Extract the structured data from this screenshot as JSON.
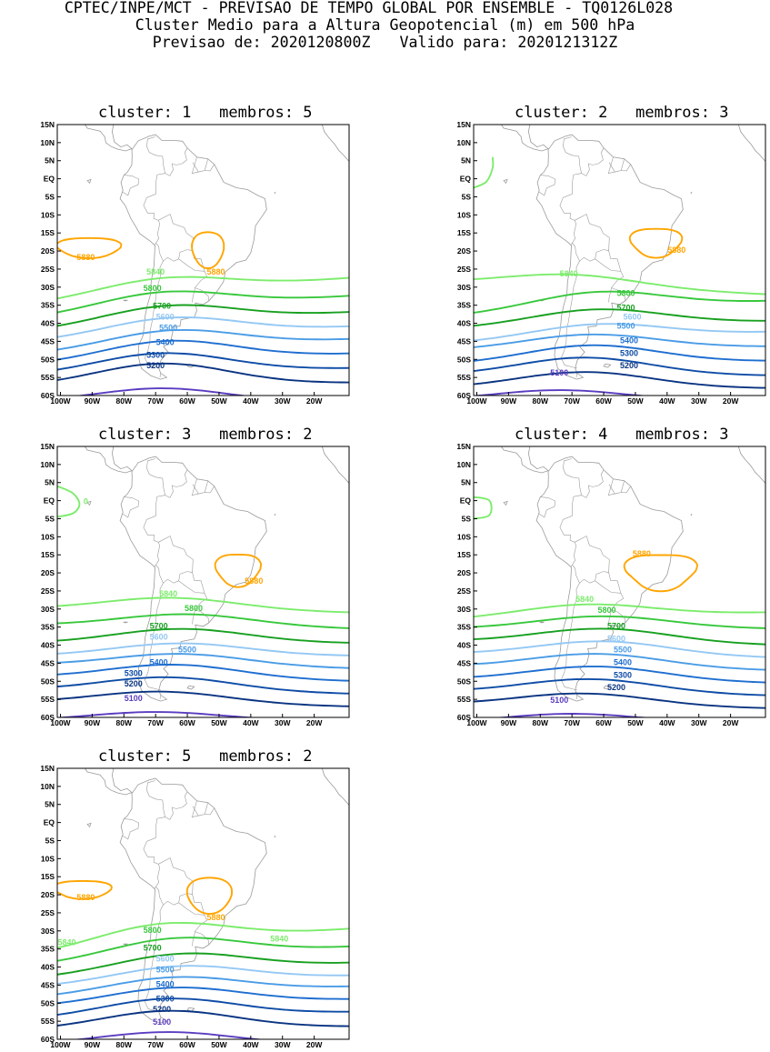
{
  "header": {
    "line1": "CPTEC/INPE/MCT - PREVISAO DE TEMPO GLOBAL POR ENSEMBLE - TQ0126L028",
    "line2": "Cluster Medio para a Altura Geopotencial (m) em 500 hPa",
    "line3_label_forecast": "Previsao de:",
    "line3_forecast": "2020120800Z",
    "line3_label_valid": "Valido para:",
    "line3_valid": "2020121312Z"
  },
  "axes": {
    "lat_labels": [
      "15N",
      "10N",
      "5N",
      "EQ",
      "5S",
      "10S",
      "15S",
      "20S",
      "25S",
      "30S",
      "35S",
      "40S",
      "45S",
      "50S",
      "55S",
      "60S"
    ],
    "lon_labels": [
      "100W",
      "90W",
      "80W",
      "70W",
      "60W",
      "50W",
      "40W",
      "30W",
      "20W"
    ]
  },
  "colors": {
    "5880": "#ffa500",
    "5840": "#7cec6c",
    "5800": "#38c83c",
    "5700": "#18a020",
    "5600": "#94c8f4",
    "5500": "#4a9ce6",
    "5400": "#1e6ed0",
    "5300": "#0e4ca6",
    "5200": "#0a3482",
    "5100": "#5a3cc0",
    "coast": "#9a9a9a"
  },
  "panels": [
    {
      "cluster_label": "cluster:",
      "cluster": "1",
      "members_label": "membros:",
      "members": "5",
      "labels": [
        {
          "lon": -92,
          "lat": -22.5,
          "text": "5880",
          "c": "5880"
        },
        {
          "lon": -51,
          "lat": -26.5,
          "text": "5880",
          "c": "5880"
        },
        {
          "lon": -70,
          "lat": -26.5,
          "text": "5840",
          "c": "5840"
        },
        {
          "lon": -71,
          "lat": -31,
          "text": "5800",
          "c": "5800"
        },
        {
          "lon": -68,
          "lat": -36,
          "text": "5700",
          "c": "5700"
        },
        {
          "lon": -67,
          "lat": -39,
          "text": "5600",
          "c": "5600"
        },
        {
          "lon": -66,
          "lat": -42,
          "text": "5500",
          "c": "5500"
        },
        {
          "lon": -67,
          "lat": -46,
          "text": "5400",
          "c": "5400"
        },
        {
          "lon": -70,
          "lat": -49.5,
          "text": "5300",
          "c": "5300"
        },
        {
          "lon": -70,
          "lat": -52.5,
          "text": "5200",
          "c": "5200"
        }
      ]
    },
    {
      "cluster_label": "cluster:",
      "cluster": "2",
      "members_label": "membros:",
      "members": "3",
      "labels": [
        {
          "lon": -37,
          "lat": -20.5,
          "text": "5880",
          "c": "5880"
        },
        {
          "lon": -71,
          "lat": -27,
          "text": "5840",
          "c": "5840"
        },
        {
          "lon": -53,
          "lat": -32.5,
          "text": "5800",
          "c": "5800"
        },
        {
          "lon": -53,
          "lat": -36.5,
          "text": "5700",
          "c": "5700"
        },
        {
          "lon": -51,
          "lat": -39,
          "text": "5600",
          "c": "5600"
        },
        {
          "lon": -53,
          "lat": -41.5,
          "text": "5500",
          "c": "5500"
        },
        {
          "lon": -52,
          "lat": -45.5,
          "text": "5400",
          "c": "5400"
        },
        {
          "lon": -52,
          "lat": -49,
          "text": "5300",
          "c": "5300"
        },
        {
          "lon": -52,
          "lat": -52.5,
          "text": "5200",
          "c": "5200"
        },
        {
          "lon": -74,
          "lat": -54.5,
          "text": "5100",
          "c": "5100"
        }
      ]
    },
    {
      "cluster_label": "cluster:",
      "cluster": "3",
      "members_label": "membros:",
      "members": "2",
      "labels": [
        {
          "lon": -92,
          "lat": -1,
          "text": "0",
          "c": "5840"
        },
        {
          "lon": -39,
          "lat": -23,
          "text": "5880",
          "c": "5880"
        },
        {
          "lon": -66,
          "lat": -26.5,
          "text": "5840",
          "c": "5840"
        },
        {
          "lon": -58,
          "lat": -30.5,
          "text": "5800",
          "c": "5800"
        },
        {
          "lon": -69,
          "lat": -35.5,
          "text": "5700",
          "c": "5700"
        },
        {
          "lon": -69,
          "lat": -38.5,
          "text": "5600",
          "c": "5600"
        },
        {
          "lon": -60,
          "lat": -42,
          "text": "5500",
          "c": "5500"
        },
        {
          "lon": -69,
          "lat": -45.5,
          "text": "5400",
          "c": "5400"
        },
        {
          "lon": -77,
          "lat": -48.5,
          "text": "5300",
          "c": "5300"
        },
        {
          "lon": -77,
          "lat": -51.5,
          "text": "5200",
          "c": "5200"
        },
        {
          "lon": -77,
          "lat": -55.5,
          "text": "5100",
          "c": "5100"
        }
      ]
    },
    {
      "cluster_label": "cluster:",
      "cluster": "4",
      "members_label": "membros:",
      "members": "3",
      "labels": [
        {
          "lon": -48,
          "lat": -15.5,
          "text": "5880",
          "c": "5880"
        },
        {
          "lon": -66,
          "lat": -28,
          "text": "5840",
          "c": "5840"
        },
        {
          "lon": -59,
          "lat": -31,
          "text": "5800",
          "c": "5800"
        },
        {
          "lon": -56,
          "lat": -35.5,
          "text": "5700",
          "c": "5700"
        },
        {
          "lon": -56,
          "lat": -39,
          "text": "5600",
          "c": "5600"
        },
        {
          "lon": -54,
          "lat": -42,
          "text": "5500",
          "c": "5500"
        },
        {
          "lon": -54,
          "lat": -45.5,
          "text": "5400",
          "c": "5400"
        },
        {
          "lon": -54,
          "lat": -49,
          "text": "5300",
          "c": "5300"
        },
        {
          "lon": -56,
          "lat": -52.5,
          "text": "5200",
          "c": "5200"
        },
        {
          "lon": -74,
          "lat": -56,
          "text": "5100",
          "c": "5100"
        }
      ]
    },
    {
      "cluster_label": "cluster:",
      "cluster": "5",
      "members_label": "membros:",
      "members": "2",
      "labels": [
        {
          "lon": -92,
          "lat": -21.5,
          "text": "5880",
          "c": "5880"
        },
        {
          "lon": -51,
          "lat": -27,
          "text": "5880",
          "c": "5880"
        },
        {
          "lon": -98,
          "lat": -34,
          "text": "5840",
          "c": "5840"
        },
        {
          "lon": -31,
          "lat": -33,
          "text": "5840",
          "c": "5840"
        },
        {
          "lon": -71,
          "lat": -30.5,
          "text": "5800",
          "c": "5800"
        },
        {
          "lon": -71,
          "lat": -35.5,
          "text": "5700",
          "c": "5700"
        },
        {
          "lon": -67,
          "lat": -38.5,
          "text": "5600",
          "c": "5600"
        },
        {
          "lon": -67,
          "lat": -41.5,
          "text": "5500",
          "c": "5500"
        },
        {
          "lon": -67,
          "lat": -45.5,
          "text": "5400",
          "c": "5400"
        },
        {
          "lon": -67,
          "lat": -49.5,
          "text": "5300",
          "c": "5300"
        },
        {
          "lon": -68,
          "lat": -52.5,
          "text": "5200",
          "c": "5200"
        },
        {
          "lon": -68,
          "lat": -56,
          "text": "5100",
          "c": "5100"
        }
      ]
    }
  ]
}
